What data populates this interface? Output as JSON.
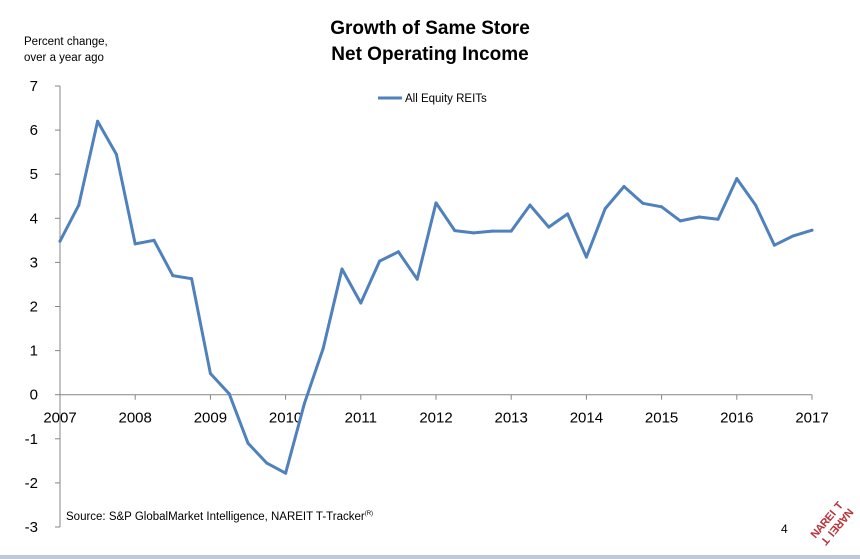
{
  "slide": {
    "title_line1": "Growth of Same Store",
    "title_line2": "Net Operating Income",
    "y_label_line1": "Percent change,",
    "y_label_line2": "over a year ago",
    "source_text": "Source: S&P GlobalMarket Intelligence, NAREIT T-Tracker",
    "source_superscript": "(R)",
    "page_number": "4",
    "logo_text": "NAREIT",
    "colors": {
      "series": "#4F81BD",
      "axis": "#868686",
      "logo": "#B8323A",
      "bottom_bar": "#C0C9D8"
    }
  },
  "chart_data": {
    "type": "line",
    "title": "Growth of Same Store Net Operating Income",
    "ylabel": "Percent change, over a year ago",
    "xlabel": "",
    "ylim": [
      -3,
      7
    ],
    "y_ticks": [
      7,
      6,
      5,
      4,
      3,
      2,
      1,
      0,
      -1,
      -2,
      -3
    ],
    "x_ticks": [
      "2007",
      "2008",
      "2009",
      "2010",
      "2011",
      "2012",
      "2013",
      "2014",
      "2015",
      "2016",
      "2017"
    ],
    "legend_position": "top-center",
    "grid": false,
    "series": [
      {
        "name": "All Equity REITs",
        "x": [
          "2007Q1",
          "2007Q2",
          "2007Q3",
          "2007Q4",
          "2008Q1",
          "2008Q2",
          "2008Q3",
          "2008Q4",
          "2009Q1",
          "2009Q2",
          "2009Q3",
          "2009Q4",
          "2010Q1",
          "2010Q2",
          "2010Q3",
          "2010Q4",
          "2011Q1",
          "2011Q2",
          "2011Q3",
          "2011Q4",
          "2012Q1",
          "2012Q2",
          "2012Q3",
          "2012Q4",
          "2013Q1",
          "2013Q2",
          "2013Q3",
          "2013Q4",
          "2014Q1",
          "2014Q2",
          "2014Q3",
          "2014Q4",
          "2015Q1",
          "2015Q2",
          "2015Q3",
          "2015Q4",
          "2016Q1",
          "2016Q2",
          "2016Q3",
          "2016Q4",
          "2017Q1"
        ],
        "values": [
          3.48,
          4.3,
          6.2,
          5.45,
          3.42,
          3.5,
          2.7,
          2.63,
          0.48,
          0.02,
          -1.1,
          -1.55,
          -1.78,
          -0.2,
          1.05,
          2.85,
          2.08,
          3.03,
          3.24,
          2.62,
          4.35,
          3.72,
          3.67,
          3.71,
          3.71,
          4.3,
          3.8,
          4.1,
          3.12,
          4.22,
          4.72,
          4.34,
          4.26,
          3.94,
          4.03,
          3.98,
          4.9,
          4.3,
          3.39,
          3.6,
          3.73
        ]
      }
    ]
  }
}
